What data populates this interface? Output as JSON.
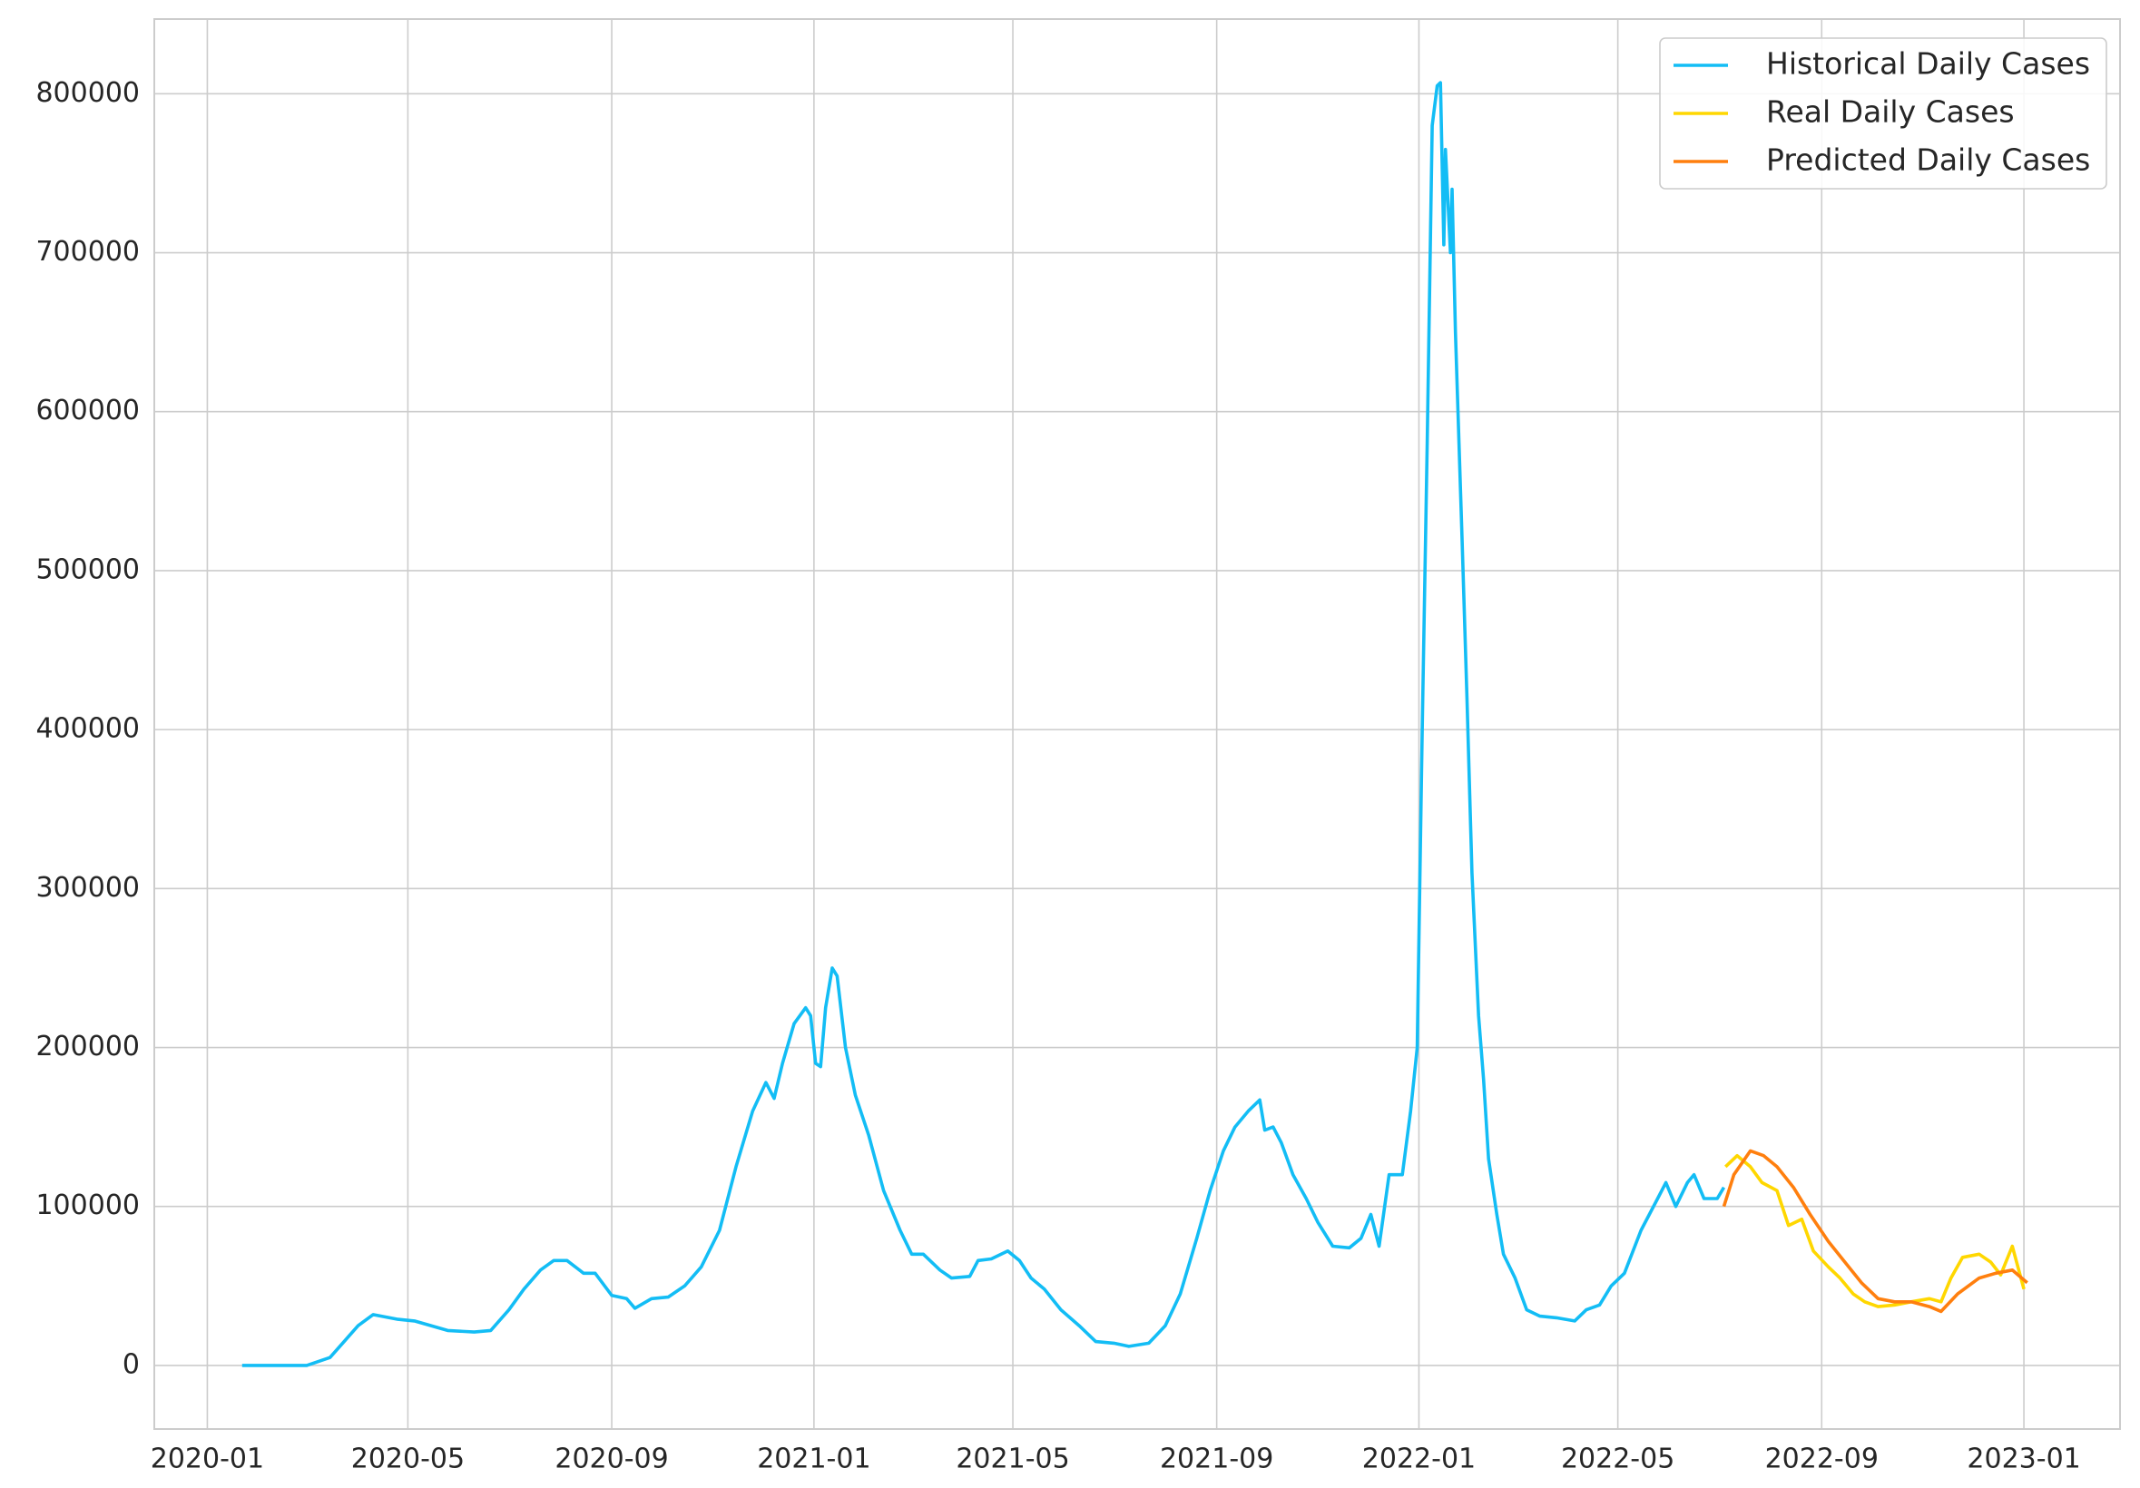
{
  "chart_data": {
    "type": "line",
    "series": [
      {
        "name": "Historical Daily Cases",
        "color": "#13bdf5",
        "x": [
          "2020-01-22",
          "2020-03-01",
          "2020-03-15",
          "2020-04-01",
          "2020-04-10",
          "2020-04-25",
          "2020-05-05",
          "2020-05-15",
          "2020-05-25",
          "2020-06-10",
          "2020-06-20",
          "2020-07-01",
          "2020-07-10",
          "2020-07-20",
          "2020-07-28",
          "2020-08-05",
          "2020-08-15",
          "2020-08-22",
          "2020-09-01",
          "2020-09-10",
          "2020-09-15",
          "2020-09-25",
          "2020-10-05",
          "2020-10-15",
          "2020-10-25",
          "2020-11-05",
          "2020-11-15",
          "2020-11-25",
          "2020-12-03",
          "2020-12-08",
          "2020-12-13",
          "2020-12-20",
          "2020-12-27",
          "2020-12-30",
          "2021-01-02",
          "2021-01-05",
          "2021-01-08",
          "2021-01-12",
          "2021-01-15",
          "2021-01-20",
          "2021-01-26",
          "2021-02-03",
          "2021-02-12",
          "2021-02-22",
          "2021-03-01",
          "2021-03-08",
          "2021-03-18",
          "2021-03-25",
          "2021-04-05",
          "2021-04-10",
          "2021-04-18",
          "2021-04-28",
          "2021-05-05",
          "2021-05-12",
          "2021-05-20",
          "2021-05-30",
          "2021-06-10",
          "2021-06-20",
          "2021-07-01",
          "2021-07-10",
          "2021-07-22",
          "2021-08-01",
          "2021-08-10",
          "2021-08-20",
          "2021-08-28",
          "2021-09-05",
          "2021-09-12",
          "2021-09-20",
          "2021-09-27",
          "2021-09-30",
          "2021-10-05",
          "2021-10-10",
          "2021-10-17",
          "2021-10-25",
          "2021-11-01",
          "2021-11-10",
          "2021-11-20",
          "2021-11-27",
          "2021-12-03",
          "2021-12-08",
          "2021-12-14",
          "2021-12-22",
          "2021-12-27",
          "2021-12-31",
          "2022-01-03",
          "2022-01-06",
          "2022-01-09",
          "2022-01-12",
          "2022-01-14",
          "2022-01-16",
          "2022-01-17",
          "2022-01-20",
          "2022-01-21",
          "2022-01-23",
          "2022-01-27",
          "2022-01-30",
          "2022-02-02",
          "2022-02-06",
          "2022-02-09",
          "2022-02-12",
          "2022-02-17",
          "2022-02-21",
          "2022-02-28",
          "2022-03-07",
          "2022-03-15",
          "2022-03-25",
          "2022-04-05",
          "2022-04-12",
          "2022-04-20",
          "2022-04-27",
          "2022-05-05",
          "2022-05-15",
          "2022-05-25",
          "2022-05-30",
          "2022-06-05",
          "2022-06-12",
          "2022-06-16",
          "2022-06-22",
          "2022-06-30",
          "2022-07-04"
        ],
        "values": [
          0,
          0,
          5000,
          25000,
          32000,
          29000,
          28000,
          25000,
          22000,
          21000,
          22000,
          35000,
          48000,
          60000,
          66000,
          66000,
          58000,
          58000,
          44000,
          42000,
          36000,
          42000,
          43000,
          50000,
          62000,
          85000,
          125000,
          160000,
          178000,
          168000,
          190000,
          215000,
          225000,
          220000,
          190000,
          188000,
          225000,
          250000,
          245000,
          200000,
          170000,
          145000,
          110000,
          85000,
          70000,
          70000,
          60000,
          55000,
          56000,
          66000,
          67000,
          72000,
          66000,
          55000,
          48000,
          35000,
          25000,
          15000,
          14000,
          12000,
          14000,
          25000,
          45000,
          80000,
          110000,
          135000,
          150000,
          160000,
          167000,
          148000,
          150000,
          140000,
          120000,
          105000,
          90000,
          75000,
          74000,
          80000,
          95000,
          75000,
          120000,
          120000,
          160000,
          200000,
          400000,
          580000,
          780000,
          805000,
          807000,
          705000,
          765000,
          700000,
          740000,
          650000,
          520000,
          420000,
          310000,
          220000,
          180000,
          130000,
          95000,
          70000,
          55000,
          35000,
          31000,
          30000,
          28000,
          35000,
          38000,
          50000,
          58000,
          85000,
          105000,
          115000,
          100000,
          115000,
          120000,
          105000,
          105000,
          112000
        ]
      },
      {
        "name": "Real Daily Cases",
        "color": "#ffd700",
        "x": [
          "2022-07-05",
          "2022-07-12",
          "2022-07-20",
          "2022-07-27",
          "2022-08-05",
          "2022-08-12",
          "2022-08-20",
          "2022-08-27",
          "2022-09-05",
          "2022-09-12",
          "2022-09-20",
          "2022-09-27",
          "2022-10-05",
          "2022-10-15",
          "2022-10-25",
          "2022-11-05",
          "2022-11-12",
          "2022-11-18",
          "2022-11-25",
          "2022-12-05",
          "2022-12-12",
          "2022-12-18",
          "2022-12-25",
          "2023-01-01"
        ],
        "values": [
          125000,
          132000,
          125000,
          115000,
          110000,
          88000,
          92000,
          72000,
          62000,
          55000,
          45000,
          40000,
          37000,
          38000,
          40000,
          42000,
          40000,
          55000,
          68000,
          70000,
          65000,
          57000,
          75000,
          48000
        ]
      },
      {
        "name": "Predicted Daily Cases",
        "color": "#ff7f0e",
        "x": [
          "2022-07-04",
          "2022-07-10",
          "2022-07-20",
          "2022-07-28",
          "2022-08-05",
          "2022-08-15",
          "2022-08-25",
          "2022-09-05",
          "2022-09-15",
          "2022-09-25",
          "2022-10-05",
          "2022-10-15",
          "2022-10-25",
          "2022-11-05",
          "2022-11-12",
          "2022-11-22",
          "2022-12-05",
          "2022-12-15",
          "2022-12-25",
          "2023-01-03"
        ],
        "values": [
          100000,
          120000,
          135000,
          132000,
          125000,
          112000,
          95000,
          78000,
          65000,
          52000,
          42000,
          40000,
          40000,
          37000,
          34000,
          45000,
          55000,
          58000,
          60000,
          52000
        ]
      }
    ],
    "xlim": [
      "2019-11-30",
      "2023-02-28"
    ],
    "xticks": [
      "2020-01",
      "2020-05",
      "2020-09",
      "2021-01",
      "2021-05",
      "2021-09",
      "2022-01",
      "2022-05",
      "2022-09",
      "2023-01"
    ],
    "ylim": [
      -40000,
      847000
    ],
    "yticks": [
      0,
      100000,
      200000,
      300000,
      400000,
      500000,
      600000,
      700000,
      800000
    ],
    "grid": true,
    "legend": "upper right"
  }
}
